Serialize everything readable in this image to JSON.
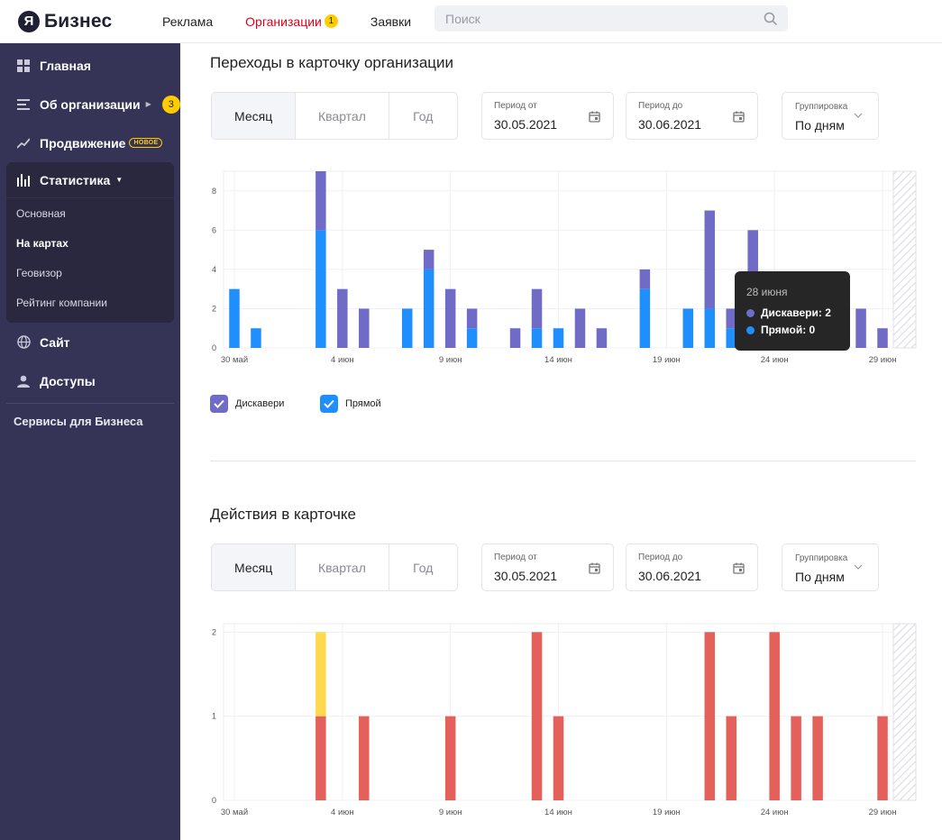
{
  "header": {
    "logo_letter": "Я",
    "logo_text": "Бизнес",
    "nav": [
      {
        "label": "Реклама",
        "active": false
      },
      {
        "label": "Организации",
        "active": true,
        "badge": "1"
      },
      {
        "label": "Заявки",
        "active": false
      }
    ],
    "search_placeholder": "Поиск"
  },
  "sidebar": {
    "items": [
      {
        "label": "Главная",
        "icon": "grid-icon"
      },
      {
        "label": "Об организации",
        "icon": "list-icon",
        "badge": "3"
      },
      {
        "label": "Продвижение",
        "icon": "trend-icon",
        "tag": "НОВОЕ"
      }
    ],
    "stats": {
      "label": "Статистика",
      "subitems": [
        {
          "label": "Основная",
          "active": false
        },
        {
          "label": "На картах",
          "active": true
        },
        {
          "label": "Геовизор",
          "active": false
        },
        {
          "label": "Рейтинг компании",
          "active": false
        }
      ]
    },
    "items2": [
      {
        "label": "Сайт",
        "icon": "globe-icon"
      },
      {
        "label": "Доступы",
        "icon": "user-icon"
      }
    ],
    "footer": "Сервисы для Бизнеса"
  },
  "section1": {
    "title": "Переходы в карточку организации",
    "segments": [
      "Месяц",
      "Квартал",
      "Год"
    ],
    "period_from_label": "Период от",
    "period_from": "30.05.2021",
    "period_to_label": "Период до",
    "period_to": "30.06.2021",
    "group_label": "Группировка",
    "group_value": "По дням",
    "legend": [
      {
        "label": "Дискавери",
        "color": "#6f6bc6"
      },
      {
        "label": "Прямой",
        "color": "#1e8ffc"
      }
    ],
    "tooltip": {
      "date": "28 июня",
      "rows": [
        {
          "label": "Дискавери: 2",
          "color": "#6f6bc6"
        },
        {
          "label": "Прямой: 0",
          "color": "#1e8ffc"
        }
      ]
    }
  },
  "section2": {
    "title": "Действия в карточке",
    "segments": [
      "Месяц",
      "Квартал",
      "Год"
    ],
    "period_from_label": "Период от",
    "period_from": "30.05.2021",
    "period_to_label": "Период до",
    "period_to": "30.06.2021",
    "group_label": "Группировка",
    "group_value": "По дням"
  },
  "chart_data": [
    {
      "type": "bar",
      "stacked": true,
      "x_tick_labels": [
        "30 май",
        "4 июн",
        "9 июн",
        "14 июн",
        "19 июн",
        "24 июн",
        "29 июн"
      ],
      "y_ticks": [
        0,
        2,
        4,
        6,
        8
      ],
      "ylim": [
        0,
        9
      ],
      "grid": true,
      "days": 31,
      "series": [
        {
          "name": "Прямой",
          "color": "#1e8ffc",
          "values": [
            3,
            1,
            0,
            0,
            6,
            0,
            0,
            0,
            2,
            4,
            0,
            1,
            0,
            0,
            1,
            1,
            0,
            0,
            0,
            3,
            0,
            2,
            2,
            1,
            3,
            0,
            0,
            0,
            0,
            0,
            0
          ]
        },
        {
          "name": "Дискавери",
          "color": "#6f6bc6",
          "values": [
            0,
            0,
            0,
            0,
            3,
            3,
            2,
            0,
            0,
            1,
            3,
            1,
            0,
            1,
            2,
            0,
            2,
            1,
            0,
            1,
            0,
            0,
            5,
            1,
            3,
            0,
            0,
            0,
            2,
            2,
            1
          ]
        }
      ]
    },
    {
      "type": "bar",
      "stacked": true,
      "x_tick_labels": [
        "30 май",
        "4 июн",
        "9 июн",
        "14 июн",
        "19 июн",
        "24 июн",
        "29 июн"
      ],
      "y_ticks": [
        0,
        1,
        2
      ],
      "ylim": [
        0,
        2.1
      ],
      "grid": true,
      "days": 31,
      "series": [
        {
          "color": "#e5605a",
          "values": [
            0,
            0,
            0,
            0,
            1,
            0,
            1,
            0,
            0,
            0,
            1,
            0,
            0,
            0,
            2,
            1,
            0,
            0,
            0,
            0,
            0,
            0,
            2,
            1,
            0,
            2,
            1,
            1,
            0,
            0,
            1
          ]
        },
        {
          "color": "#ffd84d",
          "values": [
            0,
            0,
            0,
            0,
            1,
            0,
            0,
            0,
            0,
            0,
            0,
            0,
            0,
            0,
            0,
            0,
            0,
            0,
            0,
            0,
            0,
            0,
            0,
            0,
            0,
            0,
            0,
            0,
            0,
            0,
            0
          ]
        }
      ]
    }
  ]
}
